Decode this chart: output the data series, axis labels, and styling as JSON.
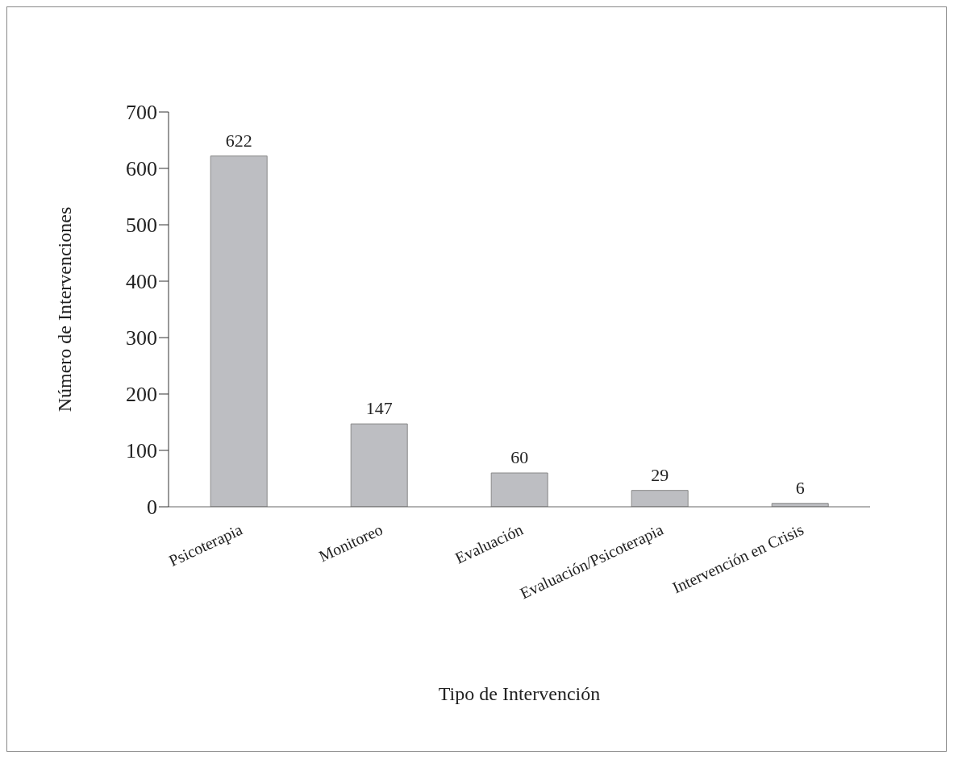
{
  "chart_data": {
    "type": "bar",
    "xlabel": "Tipo de Intervención",
    "ylabel": "Número de Intervenciones",
    "categories": [
      "Psicoterapia",
      "Monitoreo",
      "Evaluación",
      "Evaluación/Psicoterapia",
      "Intervención en Crisis"
    ],
    "values": [
      622,
      147,
      60,
      29,
      6
    ],
    "color": "#bdbec2",
    "ylim": [
      0,
      700
    ],
    "yticks": [
      0,
      100,
      200,
      300,
      400,
      500,
      600,
      700
    ],
    "grid": false,
    "data_labels": true
  }
}
